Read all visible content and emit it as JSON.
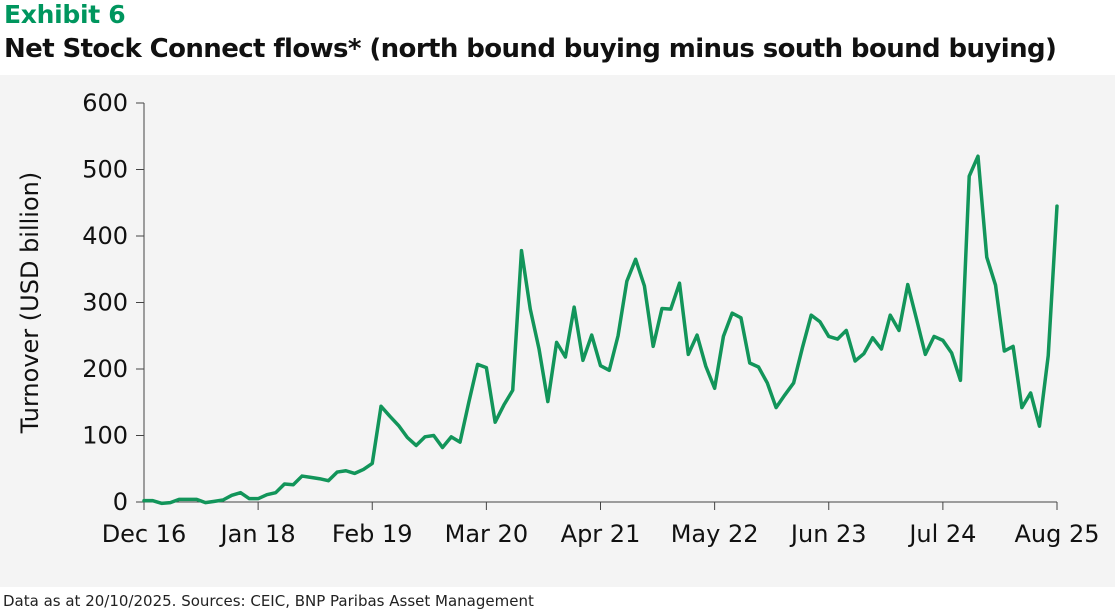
{
  "header": {
    "exhibit_label": "Exhibit 6",
    "title": "Net Stock Connect flows* (north bound buying minus south bound buying)"
  },
  "footer": {
    "note": "Data as at 20/10/2025. Sources: CEIC, BNP Paribas Asset Management"
  },
  "colors": {
    "accent": "#00965e",
    "line": "#12955a",
    "panel_background": "#f4f4f4"
  },
  "chart_data": {
    "type": "line",
    "title": "Net Stock Connect flows* (north bound buying minus south bound buying)",
    "xlabel": "",
    "ylabel": "Turnover (USD billion)",
    "ylim": [
      0,
      600
    ],
    "yticks": [
      "0",
      "100",
      "200",
      "300",
      "400",
      "500",
      "600"
    ],
    "xlim": [
      0,
      104
    ],
    "xticks": [
      {
        "label": "Dec 16",
        "x": 0
      },
      {
        "label": "Jan 18",
        "x": 13
      },
      {
        "label": "Feb 19",
        "x": 26
      },
      {
        "label": "Mar 20",
        "x": 39
      },
      {
        "label": "Apr 21",
        "x": 52
      },
      {
        "label": "May 22",
        "x": 65
      },
      {
        "label": "Jun 23",
        "x": 78
      },
      {
        "label": "Jul 24",
        "x": 91
      },
      {
        "label": "Aug 25",
        "x": 104
      }
    ],
    "grid": false,
    "series": [
      {
        "values": [
          2,
          2,
          -2,
          -1,
          4,
          4,
          4,
          -1,
          1,
          3,
          10,
          14,
          5,
          5,
          11,
          14,
          27,
          26,
          39,
          37,
          35,
          32,
          45,
          47,
          43,
          49,
          58,
          144,
          129,
          115,
          97,
          85,
          98,
          100,
          82,
          98,
          90,
          150,
          207,
          202,
          120,
          146,
          168,
          378,
          290,
          230,
          151,
          240,
          218,
          293,
          213,
          251,
          205,
          198,
          250,
          332,
          365,
          325,
          234,
          291,
          290,
          329,
          222,
          251,
          204,
          171,
          249,
          284,
          277,
          209,
          203,
          179,
          142,
          161,
          179,
          232,
          281,
          271,
          249,
          245,
          258,
          212,
          223,
          247,
          230,
          281,
          258,
          327,
          275,
          222,
          249,
          243,
          224,
          183,
          490,
          520,
          368,
          326,
          227,
          234,
          142,
          164,
          114,
          220,
          445
        ]
      }
    ]
  }
}
